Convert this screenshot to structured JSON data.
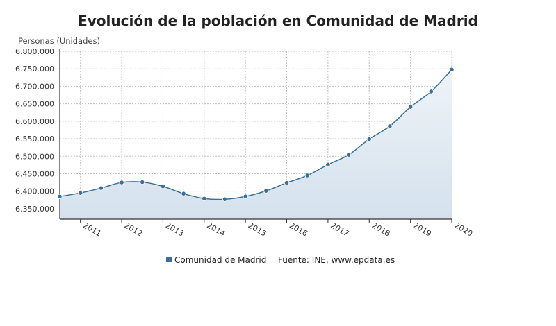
{
  "chart_data": {
    "type": "area",
    "title": "Evolución de la población en Comunidad de Madrid",
    "ylabel": "Personas (Unidades)",
    "xlabel": "",
    "x_start": "2010-07",
    "x_tick_labels": [
      "2011",
      "2012",
      "2013",
      "2014",
      "2015",
      "2016",
      "2017",
      "2018",
      "2019",
      "2020"
    ],
    "x_ticks_years": [
      2011,
      2012,
      2013,
      2014,
      2015,
      2016,
      2017,
      2018,
      2019,
      2020
    ],
    "y_ticks": [
      6350000,
      6400000,
      6450000,
      6500000,
      6550000,
      6600000,
      6650000,
      6700000,
      6750000,
      6800000
    ],
    "y_tick_labels": [
      "6.350.000",
      "6.400.000",
      "6.450.000",
      "6.500.000",
      "6.550.000",
      "6.600.000",
      "6.650.000",
      "6.700.000",
      "6.750.000",
      "6.800.000"
    ],
    "ylim": [
      6320000,
      6800000
    ],
    "grid": true,
    "series": [
      {
        "name": "Comunidad de Madrid",
        "color": "#3a6f96",
        "x": [
          2010.5,
          2011.0,
          2011.5,
          2012.0,
          2012.5,
          2013.0,
          2013.5,
          2014.0,
          2014.5,
          2015.0,
          2015.5,
          2016.0,
          2016.5,
          2017.0,
          2017.5,
          2018.0,
          2018.5,
          2019.0,
          2019.5,
          2020.0
        ],
        "values": [
          6385000,
          6395000,
          6409000,
          6425000,
          6426000,
          6414000,
          6393000,
          6379000,
          6377000,
          6385000,
          6401000,
          6424000,
          6445000,
          6476000,
          6504000,
          6549000,
          6586000,
          6641000,
          6685000,
          6748000
        ]
      }
    ],
    "legend_position": "bottom",
    "source": "Fuente: INE, www.epdata.es"
  }
}
